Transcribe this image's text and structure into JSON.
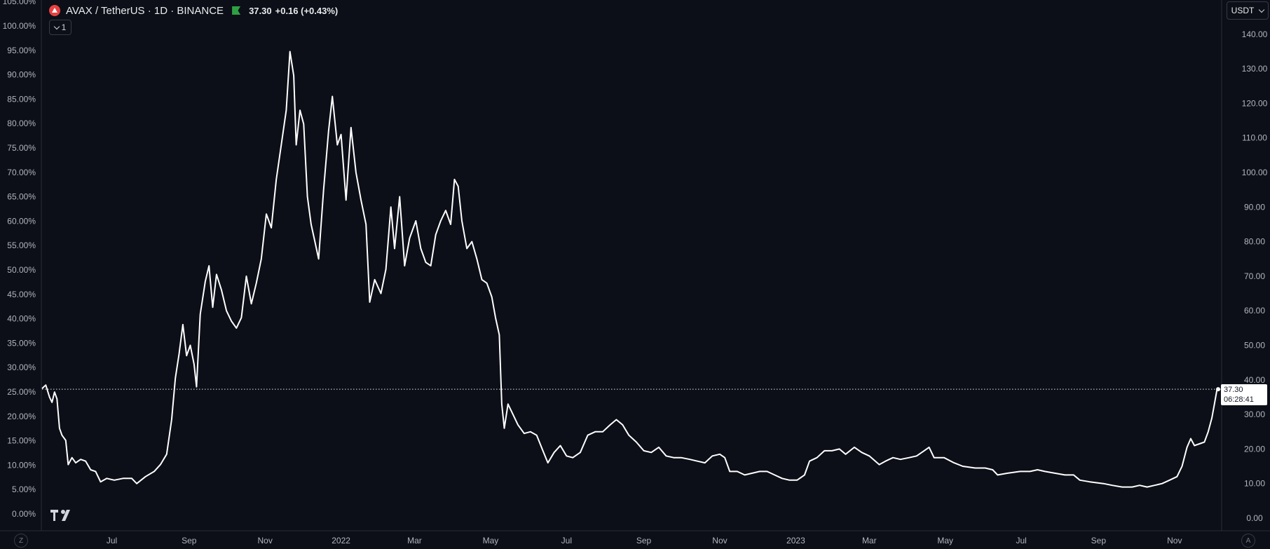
{
  "legend": {
    "symbol": "AVAX / TetherUS · 1D · BINANCE",
    "last": "37.30",
    "change": "+0.16 (+0.43%)"
  },
  "indicator_toggle": {
    "count": "1"
  },
  "currency": "USDT",
  "last_price_tag": {
    "price": "37.30",
    "countdown": "06:28:41"
  },
  "bottom_left_button": "Z",
  "bottom_right_button": "A",
  "icons": [
    "avax-symbol-icon",
    "market-open-flag-icon",
    "chevron-down-icon",
    "tradingview-logo-icon"
  ],
  "colors": {
    "background": "#0c0f17",
    "line": "#ffffff",
    "text": "#d1d4dc",
    "avax": "#e84142",
    "flag": "#2ea043"
  },
  "chart_data": {
    "type": "line",
    "title": "AVAX / TetherUS · 1D · BINANCE",
    "xlabel": "",
    "ylabel": "",
    "x_ticks": [
      "Jul",
      "Sep",
      "Nov",
      "2022",
      "Mar",
      "May",
      "Jul",
      "Sep",
      "Nov",
      "2023",
      "Mar",
      "May",
      "Jul",
      "Sep",
      "Nov"
    ],
    "y_left_ticks": [
      "0.00%",
      "5.00%",
      "10.00%",
      "15.00%",
      "20.00%",
      "25.00%",
      "30.00%",
      "35.00%",
      "40.00%",
      "45.00%",
      "50.00%",
      "55.00%",
      "60.00%",
      "65.00%",
      "70.00%",
      "75.00%",
      "80.00%",
      "85.00%",
      "90.00%",
      "95.00%",
      "100.00%",
      "105.00%"
    ],
    "y_right_ticks": [
      "0.00",
      "10.00",
      "20.00",
      "30.00",
      "40.00",
      "50.00",
      "60.00",
      "70.00",
      "80.00",
      "90.00",
      "100.00",
      "110.00",
      "120.00",
      "130.00",
      "140.00"
    ],
    "ylim": [
      0,
      150
    ],
    "xlim": [
      "2021-05-06",
      "2023-12-06"
    ],
    "last_price": 37.3,
    "grid": false,
    "series": [
      {
        "points": [
          [
            "2021-05-06",
            37.5
          ],
          [
            "2021-05-09",
            38.5
          ],
          [
            "2021-05-12",
            35.0
          ],
          [
            "2021-05-14",
            33.5
          ],
          [
            "2021-05-16",
            36.5
          ],
          [
            "2021-05-18",
            34.5
          ],
          [
            "2021-05-20",
            26.0
          ],
          [
            "2021-05-22",
            24.0
          ],
          [
            "2021-05-25",
            22.5
          ],
          [
            "2021-05-27",
            15.5
          ],
          [
            "2021-05-30",
            17.5
          ],
          [
            "2021-06-02",
            16.0
          ],
          [
            "2021-06-06",
            17.0
          ],
          [
            "2021-06-10",
            16.5
          ],
          [
            "2021-06-14",
            14.0
          ],
          [
            "2021-06-18",
            13.5
          ],
          [
            "2021-06-22",
            10.5
          ],
          [
            "2021-06-27",
            11.5
          ],
          [
            "2021-07-03",
            11.0
          ],
          [
            "2021-07-10",
            11.5
          ],
          [
            "2021-07-17",
            11.5
          ],
          [
            "2021-07-21",
            10.0
          ],
          [
            "2021-07-28",
            12.0
          ],
          [
            "2021-08-04",
            13.5
          ],
          [
            "2021-08-09",
            15.5
          ],
          [
            "2021-08-14",
            18.5
          ],
          [
            "2021-08-18",
            28.5
          ],
          [
            "2021-08-21",
            40.5
          ],
          [
            "2021-08-24",
            47.5
          ],
          [
            "2021-08-27",
            56.0
          ],
          [
            "2021-08-30",
            47.0
          ],
          [
            "2021-09-02",
            50.0
          ],
          [
            "2021-09-05",
            44.5
          ],
          [
            "2021-09-07",
            38.0
          ],
          [
            "2021-09-10",
            59.0
          ],
          [
            "2021-09-14",
            68.5
          ],
          [
            "2021-09-17",
            73.0
          ],
          [
            "2021-09-20",
            61.0
          ],
          [
            "2021-09-23",
            70.5
          ],
          [
            "2021-09-27",
            66.0
          ],
          [
            "2021-10-01",
            60.0
          ],
          [
            "2021-10-05",
            57.0
          ],
          [
            "2021-10-09",
            55.0
          ],
          [
            "2021-10-13",
            58.0
          ],
          [
            "2021-10-17",
            70.0
          ],
          [
            "2021-10-21",
            62.0
          ],
          [
            "2021-10-25",
            68.0
          ],
          [
            "2021-10-29",
            75.0
          ],
          [
            "2021-11-02",
            88.0
          ],
          [
            "2021-11-06",
            84.0
          ],
          [
            "2021-11-10",
            98.0
          ],
          [
            "2021-11-14",
            108.0
          ],
          [
            "2021-11-18",
            118.0
          ],
          [
            "2021-11-21",
            135.0
          ],
          [
            "2021-11-24",
            128.0
          ],
          [
            "2021-11-26",
            108.0
          ],
          [
            "2021-11-29",
            118.0
          ],
          [
            "2021-12-02",
            114.0
          ],
          [
            "2021-12-05",
            93.0
          ],
          [
            "2021-12-08",
            85.0
          ],
          [
            "2021-12-11",
            80.0
          ],
          [
            "2021-12-14",
            75.0
          ],
          [
            "2021-12-18",
            95.0
          ],
          [
            "2021-12-22",
            112.0
          ],
          [
            "2021-12-25",
            122.0
          ],
          [
            "2021-12-29",
            108.0
          ],
          [
            "2022-01-01",
            111.0
          ],
          [
            "2022-01-05",
            92.0
          ],
          [
            "2022-01-09",
            113.0
          ],
          [
            "2022-01-13",
            100.0
          ],
          [
            "2022-01-17",
            92.0
          ],
          [
            "2022-01-21",
            85.0
          ],
          [
            "2022-01-24",
            62.5
          ],
          [
            "2022-01-28",
            69.0
          ],
          [
            "2022-02-02",
            65.0
          ],
          [
            "2022-02-06",
            72.0
          ],
          [
            "2022-02-10",
            90.0
          ],
          [
            "2022-02-13",
            78.0
          ],
          [
            "2022-02-17",
            93.0
          ],
          [
            "2022-02-21",
            73.0
          ],
          [
            "2022-02-25",
            81.0
          ],
          [
            "2022-03-02",
            86.0
          ],
          [
            "2022-03-06",
            78.0
          ],
          [
            "2022-03-10",
            74.0
          ],
          [
            "2022-03-14",
            73.0
          ],
          [
            "2022-03-18",
            82.0
          ],
          [
            "2022-03-22",
            86.0
          ],
          [
            "2022-03-26",
            89.0
          ],
          [
            "2022-03-30",
            85.0
          ],
          [
            "2022-04-02",
            98.0
          ],
          [
            "2022-04-05",
            96.0
          ],
          [
            "2022-04-08",
            86.0
          ],
          [
            "2022-04-12",
            78.0
          ],
          [
            "2022-04-16",
            80.0
          ],
          [
            "2022-04-20",
            75.0
          ],
          [
            "2022-04-24",
            69.0
          ],
          [
            "2022-04-28",
            68.0
          ],
          [
            "2022-05-02",
            64.0
          ],
          [
            "2022-05-05",
            58.0
          ],
          [
            "2022-05-08",
            53.0
          ],
          [
            "2022-05-10",
            33.0
          ],
          [
            "2022-05-12",
            26.0
          ],
          [
            "2022-05-15",
            33.0
          ],
          [
            "2022-05-19",
            30.0
          ],
          [
            "2022-05-23",
            27.0
          ],
          [
            "2022-05-28",
            24.5
          ],
          [
            "2022-06-02",
            25.0
          ],
          [
            "2022-06-07",
            24.0
          ],
          [
            "2022-06-12",
            19.5
          ],
          [
            "2022-06-16",
            16.0
          ],
          [
            "2022-06-21",
            19.0
          ],
          [
            "2022-06-26",
            21.0
          ],
          [
            "2022-07-01",
            18.0
          ],
          [
            "2022-07-06",
            17.5
          ],
          [
            "2022-07-12",
            19.0
          ],
          [
            "2022-07-18",
            24.0
          ],
          [
            "2022-07-24",
            25.0
          ],
          [
            "2022-07-30",
            25.0
          ],
          [
            "2022-08-05",
            27.0
          ],
          [
            "2022-08-10",
            28.5
          ],
          [
            "2022-08-15",
            27.0
          ],
          [
            "2022-08-20",
            24.0
          ],
          [
            "2022-08-26",
            22.0
          ],
          [
            "2022-09-01",
            19.5
          ],
          [
            "2022-09-07",
            19.0
          ],
          [
            "2022-09-13",
            20.5
          ],
          [
            "2022-09-19",
            18.0
          ],
          [
            "2022-09-25",
            17.5
          ],
          [
            "2022-10-01",
            17.5
          ],
          [
            "2022-10-08",
            17.0
          ],
          [
            "2022-10-14",
            16.5
          ],
          [
            "2022-10-20",
            16.0
          ],
          [
            "2022-10-26",
            18.0
          ],
          [
            "2022-11-01",
            18.5
          ],
          [
            "2022-11-05",
            17.5
          ],
          [
            "2022-11-09",
            13.5
          ],
          [
            "2022-11-15",
            13.5
          ],
          [
            "2022-11-21",
            12.5
          ],
          [
            "2022-11-27",
            13.0
          ],
          [
            "2022-12-03",
            13.5
          ],
          [
            "2022-12-09",
            13.5
          ],
          [
            "2022-12-15",
            12.5
          ],
          [
            "2022-12-21",
            11.5
          ],
          [
            "2022-12-27",
            11.0
          ],
          [
            "2023-01-02",
            11.0
          ],
          [
            "2023-01-08",
            12.5
          ],
          [
            "2023-01-12",
            16.5
          ],
          [
            "2023-01-18",
            17.5
          ],
          [
            "2023-01-24",
            19.5
          ],
          [
            "2023-01-30",
            19.5
          ],
          [
            "2023-02-05",
            20.0
          ],
          [
            "2023-02-10",
            18.5
          ],
          [
            "2023-02-17",
            20.5
          ],
          [
            "2023-02-23",
            19.0
          ],
          [
            "2023-03-01",
            18.0
          ],
          [
            "2023-03-09",
            15.5
          ],
          [
            "2023-03-14",
            16.5
          ],
          [
            "2023-03-20",
            17.5
          ],
          [
            "2023-03-26",
            17.0
          ],
          [
            "2023-04-02",
            17.5
          ],
          [
            "2023-04-08",
            18.0
          ],
          [
            "2023-04-14",
            19.5
          ],
          [
            "2023-04-18",
            20.5
          ],
          [
            "2023-04-22",
            17.5
          ],
          [
            "2023-04-30",
            17.5
          ],
          [
            "2023-05-08",
            16.0
          ],
          [
            "2023-05-15",
            15.0
          ],
          [
            "2023-05-25",
            14.5
          ],
          [
            "2023-06-02",
            14.5
          ],
          [
            "2023-06-08",
            14.0
          ],
          [
            "2023-06-12",
            12.5
          ],
          [
            "2023-06-20",
            13.0
          ],
          [
            "2023-06-30",
            13.5
          ],
          [
            "2023-07-08",
            13.5
          ],
          [
            "2023-07-14",
            14.0
          ],
          [
            "2023-07-20",
            13.5
          ],
          [
            "2023-07-28",
            13.0
          ],
          [
            "2023-08-05",
            12.5
          ],
          [
            "2023-08-12",
            12.5
          ],
          [
            "2023-08-17",
            11.0
          ],
          [
            "2023-08-25",
            10.5
          ],
          [
            "2023-09-05",
            10.0
          ],
          [
            "2023-09-12",
            9.5
          ],
          [
            "2023-09-20",
            9.0
          ],
          [
            "2023-09-28",
            9.0
          ],
          [
            "2023-10-04",
            9.5
          ],
          [
            "2023-10-10",
            9.0
          ],
          [
            "2023-10-16",
            9.5
          ],
          [
            "2023-10-22",
            10.0
          ],
          [
            "2023-10-28",
            11.0
          ],
          [
            "2023-11-03",
            12.0
          ],
          [
            "2023-11-07",
            15.0
          ],
          [
            "2023-11-11",
            20.5
          ],
          [
            "2023-11-14",
            23.0
          ],
          [
            "2023-11-17",
            21.0
          ],
          [
            "2023-11-21",
            21.5
          ],
          [
            "2023-11-25",
            22.0
          ],
          [
            "2023-11-28",
            25.0
          ],
          [
            "2023-12-01",
            29.0
          ],
          [
            "2023-12-03",
            33.0
          ],
          [
            "2023-12-05",
            37.0
          ],
          [
            "2023-12-06",
            37.3
          ]
        ]
      }
    ]
  }
}
